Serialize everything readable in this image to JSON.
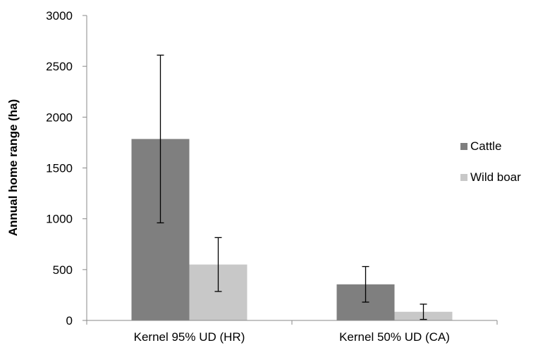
{
  "chart_data": {
    "type": "bar",
    "title": "",
    "xlabel": "",
    "ylabel": "Annual home range (ha)",
    "ylim": [
      0,
      3000
    ],
    "yticks": [
      0,
      500,
      1000,
      1500,
      2000,
      2500,
      3000
    ],
    "grid": false,
    "legend_position": "right",
    "categories": [
      "Kernel 95% UD (HR)",
      "Kernel 50% UD (CA)"
    ],
    "series": [
      {
        "name": "Cattle",
        "color": "#7f7f7f",
        "values": [
          1785,
          355
        ],
        "error": [
          825,
          175
        ]
      },
      {
        "name": "Wild boar",
        "color": "#c8c8c8",
        "values": [
          550,
          85
        ],
        "error": [
          265,
          75
        ]
      }
    ]
  }
}
